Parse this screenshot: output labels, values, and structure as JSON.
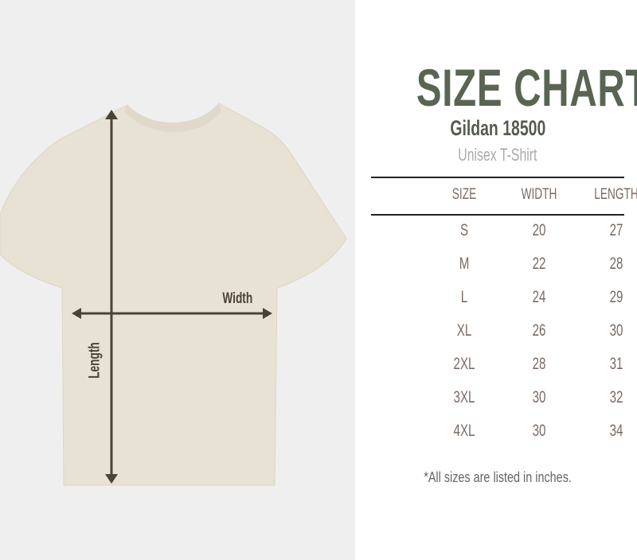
{
  "title": "SIZE CHART",
  "model": "Gildan 18500",
  "product": "Unisex T-Shirt",
  "diagram": {
    "width_label": "Width",
    "length_label": "Length",
    "shirt_color": "#e8e2d4",
    "arrow_color": "#4a4236"
  },
  "table": {
    "headers": [
      "SIZE",
      "WIDTH",
      "LENGTH"
    ],
    "rows": [
      [
        "S",
        "20",
        "27"
      ],
      [
        "M",
        "22",
        "28"
      ],
      [
        "L",
        "24",
        "29"
      ],
      [
        "XL",
        "26",
        "30"
      ],
      [
        "2XL",
        "28",
        "31"
      ],
      [
        "3XL",
        "30",
        "32"
      ],
      [
        "4XL",
        "30",
        "34"
      ]
    ]
  },
  "note": "*All sizes are listed in inches.",
  "colors": {
    "title": "#5a6453",
    "table_text": "#7a6a62"
  }
}
